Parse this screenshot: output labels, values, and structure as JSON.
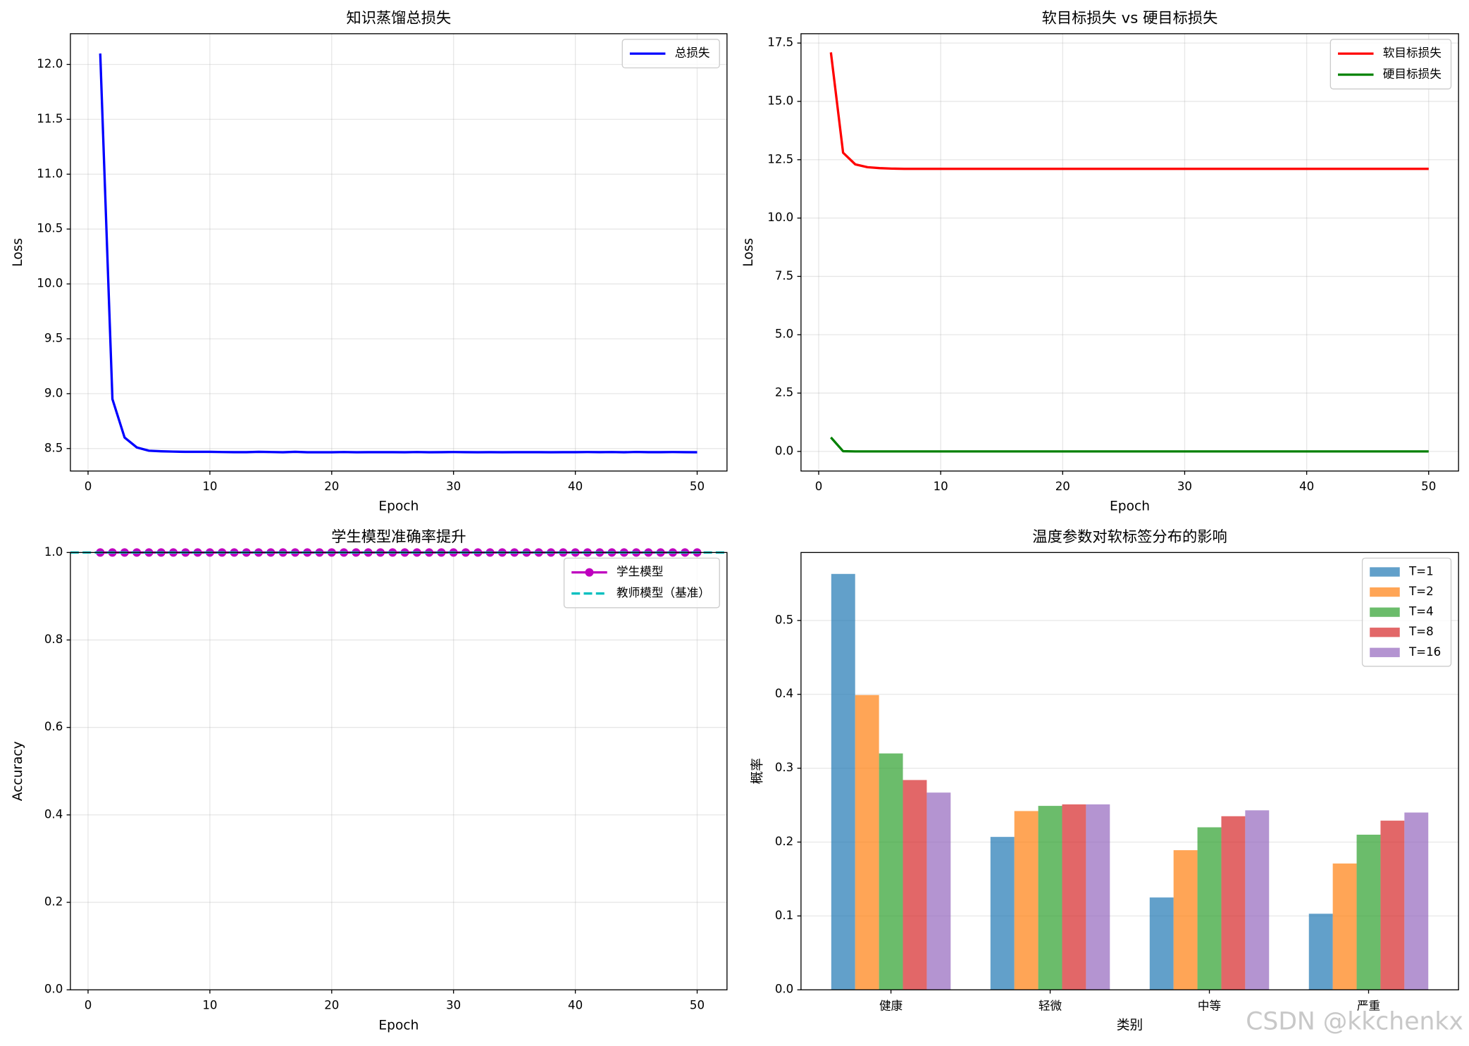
{
  "chart_data": [
    {
      "type": "line",
      "title": "知识蒸馏总损失",
      "xlabel": "Epoch",
      "ylabel": "Loss",
      "x": [
        1,
        2,
        3,
        4,
        5,
        6,
        7,
        8,
        9,
        10,
        11,
        12,
        13,
        14,
        15,
        16,
        17,
        18,
        19,
        20,
        21,
        22,
        23,
        24,
        25,
        26,
        27,
        28,
        29,
        30,
        31,
        32,
        33,
        34,
        35,
        36,
        37,
        38,
        39,
        40,
        41,
        42,
        43,
        44,
        45,
        46,
        47,
        48,
        49,
        50
      ],
      "series": [
        {
          "name": "总损失",
          "color": "#0000ff",
          "values": [
            12.1,
            8.95,
            8.6,
            8.51,
            8.48,
            8.475,
            8.472,
            8.47,
            8.47,
            8.47,
            8.468,
            8.467,
            8.467,
            8.47,
            8.468,
            8.466,
            8.47,
            8.466,
            8.466,
            8.466,
            8.468,
            8.466,
            8.467,
            8.467,
            8.467,
            8.466,
            8.468,
            8.466,
            8.467,
            8.468,
            8.467,
            8.466,
            8.467,
            8.466,
            8.467,
            8.467,
            8.467,
            8.466,
            8.467,
            8.467,
            8.468,
            8.467,
            8.468,
            8.466,
            8.469,
            8.467,
            8.467,
            8.468,
            8.467,
            8.466
          ]
        }
      ],
      "xlim": [
        -1.45,
        52.45
      ],
      "xticks": [
        0,
        10,
        20,
        30,
        40,
        50
      ],
      "ylim": [
        8.295,
        12.28
      ],
      "yticks": [
        8.5,
        {
          "value": 9,
          "label": "9.0"
        },
        9.5,
        {
          "value": 10,
          "label": "10.0"
        },
        10.5,
        {
          "value": 11,
          "label": "11.0"
        },
        11.5,
        {
          "value": 12,
          "label": "12.0"
        }
      ],
      "grid": true,
      "legend": "upper right"
    },
    {
      "type": "line",
      "title": "软目标损失 vs 硬目标损失",
      "xlabel": "Epoch",
      "ylabel": "Loss",
      "x": [
        1,
        2,
        3,
        4,
        5,
        6,
        7,
        8,
        9,
        10,
        11,
        12,
        13,
        14,
        15,
        16,
        17,
        18,
        19,
        20,
        21,
        22,
        23,
        24,
        25,
        26,
        27,
        28,
        29,
        30,
        31,
        32,
        33,
        34,
        35,
        36,
        37,
        38,
        39,
        40,
        41,
        42,
        43,
        44,
        45,
        46,
        47,
        48,
        49,
        50
      ],
      "series": [
        {
          "name": "软目标损失",
          "color": "#ff0000",
          "values": [
            17.1,
            12.8,
            12.3,
            12.18,
            12.14,
            12.12,
            12.11,
            12.11,
            12.11,
            12.11,
            12.11,
            12.11,
            12.11,
            12.11,
            12.11,
            12.11,
            12.11,
            12.11,
            12.11,
            12.11,
            12.11,
            12.11,
            12.11,
            12.11,
            12.11,
            12.11,
            12.11,
            12.11,
            12.11,
            12.11,
            12.11,
            12.11,
            12.11,
            12.11,
            12.11,
            12.11,
            12.11,
            12.11,
            12.11,
            12.11,
            12.11,
            12.11,
            12.11,
            12.11,
            12.11,
            12.11,
            12.11,
            12.11,
            12.11,
            12.11
          ]
        },
        {
          "name": "硬目标损失",
          "color": "#008000",
          "values": [
            0.6,
            0.01,
            0,
            0,
            0,
            0,
            0,
            0,
            0,
            0,
            0,
            0,
            0,
            0,
            0,
            0,
            0,
            0,
            0,
            0,
            0,
            0,
            0,
            0,
            0,
            0,
            0,
            0,
            0,
            0,
            0,
            0,
            0,
            0,
            0,
            0,
            0,
            0,
            0,
            0,
            0,
            0,
            0,
            0,
            0,
            0,
            0,
            0,
            0,
            0
          ]
        }
      ],
      "xlim": [
        -1.45,
        52.45
      ],
      "xticks": [
        0,
        10,
        20,
        30,
        40,
        50
      ],
      "ylim": [
        -0.84,
        17.9
      ],
      "yticks": [
        {
          "value": 0,
          "label": "0.0"
        },
        2.5,
        {
          "value": 5,
          "label": "5.0"
        },
        7.5,
        {
          "value": 10,
          "label": "10.0"
        },
        12.5,
        {
          "value": 15,
          "label": "15.0"
        },
        17.5
      ],
      "grid": true,
      "legend": "upper right"
    },
    {
      "type": "line",
      "title": "学生模型准确率提升",
      "xlabel": "Epoch",
      "ylabel": "Accuracy",
      "x": [
        1,
        2,
        3,
        4,
        5,
        6,
        7,
        8,
        9,
        10,
        11,
        12,
        13,
        14,
        15,
        16,
        17,
        18,
        19,
        20,
        21,
        22,
        23,
        24,
        25,
        26,
        27,
        28,
        29,
        30,
        31,
        32,
        33,
        34,
        35,
        36,
        37,
        38,
        39,
        40,
        41,
        42,
        43,
        44,
        45,
        46,
        47,
        48,
        49,
        50
      ],
      "series": [
        {
          "name": "学生模型",
          "color": "#bf00bf",
          "marker": "o",
          "values": [
            1,
            1,
            1,
            1,
            1,
            1,
            1,
            1,
            1,
            1,
            1,
            1,
            1,
            1,
            1,
            1,
            1,
            1,
            1,
            1,
            1,
            1,
            1,
            1,
            1,
            1,
            1,
            1,
            1,
            1,
            1,
            1,
            1,
            1,
            1,
            1,
            1,
            1,
            1,
            1,
            1,
            1,
            1,
            1,
            1,
            1,
            1,
            1,
            1,
            1
          ]
        }
      ],
      "reference_lines": [
        {
          "name": "教师模型（基准）",
          "color": "#00bfbf",
          "value": 1,
          "style": "dashed"
        }
      ],
      "xlim": [
        -1.45,
        52.45
      ],
      "xticks": [
        0,
        10,
        20,
        30,
        40,
        50
      ],
      "ylim": [
        0,
        1
      ],
      "yticks": [
        {
          "value": 0,
          "label": "0.0"
        },
        0.2,
        0.4,
        0.6,
        0.8,
        {
          "value": 1,
          "label": "1.0"
        }
      ],
      "grid": true,
      "legend": "upper right"
    },
    {
      "type": "bar",
      "title": "温度参数对软标签分布的影响",
      "xlabel": "类别",
      "ylabel": "概率",
      "categories": [
        "健康",
        "轻微",
        "中等",
        "严重"
      ],
      "series": [
        {
          "name": "T=1",
          "color": "#1f77b4",
          "values": [
            0.563,
            0.207,
            0.125,
            0.103
          ]
        },
        {
          "name": "T=2",
          "color": "#ff7f0e",
          "values": [
            0.399,
            0.242,
            0.189,
            0.171
          ]
        },
        {
          "name": "T=4",
          "color": "#2ca02c",
          "values": [
            0.32,
            0.249,
            0.22,
            0.21
          ]
        },
        {
          "name": "T=8",
          "color": "#d62728",
          "values": [
            0.284,
            0.251,
            0.235,
            0.229
          ]
        },
        {
          "name": "T=16",
          "color": "#9467bd",
          "values": [
            0.267,
            0.251,
            0.243,
            0.24
          ]
        }
      ],
      "opacity": 0.7,
      "ylim": [
        0,
        0.592
      ],
      "yticks": [
        {
          "value": 0,
          "label": "0.0"
        },
        0.1,
        0.2,
        0.3,
        0.4,
        0.5
      ],
      "grid": "y",
      "legend": "upper right"
    }
  ],
  "watermark": "CSDN @kkchenkx"
}
